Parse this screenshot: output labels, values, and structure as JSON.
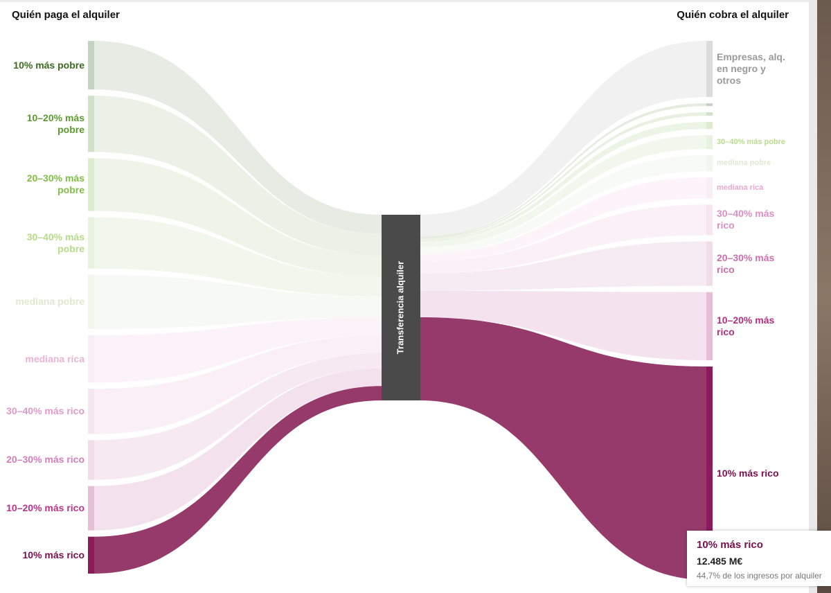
{
  "chart_data": {
    "type": "sankey",
    "title_left": "Quién paga el alquiler",
    "title_right": "Quién cobra el alquiler",
    "center": {
      "name": "Transferencia alquiler",
      "color": "#4a4a4a"
    },
    "sources": [
      {
        "name": "10% más pobre",
        "value": 2845,
        "color": "#c5d3c2",
        "link_color": "#e6ebe3",
        "label_color": "#3a6a1e"
      },
      {
        "name": "10–20% más pobre",
        "value": 3290,
        "color": "#d2e2c9",
        "link_color": "#ebf1e6",
        "label_color": "#5b9a2e"
      },
      {
        "name": "20–30% más pobre",
        "value": 3090,
        "color": "#dbecd0",
        "link_color": "#eef4e8",
        "label_color": "#7fbe45"
      },
      {
        "name": "30–40% más pobre",
        "value": 3010,
        "color": "#e8f3df",
        "link_color": "#f1f7ec",
        "label_color": "#b5dc88"
      },
      {
        "name": "mediana pobre",
        "value": 3170,
        "color": "#f3f6ef",
        "link_color": "#f7f9f4",
        "label_color": "#dfe8cf"
      },
      {
        "name": "mediana rica",
        "value": 2770,
        "color": "#f9eef6",
        "link_color": "#fbf3f8",
        "label_color": "#ebb3d8"
      },
      {
        "name": "30–40% más rico",
        "value": 2640,
        "color": "#f5e6f0",
        "link_color": "#f9eff5",
        "label_color": "#e099c9"
      },
      {
        "name": "20–30% más rico",
        "value": 2320,
        "color": "#f1dcea",
        "link_color": "#f6e9f1",
        "label_color": "#d47eb9"
      },
      {
        "name": "10–20% más rico",
        "value": 2600,
        "color": "#e6bfd6",
        "link_color": "#f3e2ee",
        "label_color": "#b8348a"
      },
      {
        "name": "10% más rico",
        "value": 2160,
        "color": "#8a1a5c",
        "link_color": "#963a6b",
        "label_color": "#7a0f4e"
      }
    ],
    "targets": [
      {
        "name": "Empresas, alq. en negro y otros",
        "value": 3290,
        "color": "#dcdcdc",
        "link_color": "#f1f1f1",
        "label_color": "#9a9a9a"
      },
      {
        "name": null,
        "value": 160,
        "color": "#c5d3c2",
        "link_color": "#e3ecdd",
        "label_color": "#3a6a1e"
      },
      {
        "name": null,
        "value": 200,
        "color": "#d2e2c9",
        "link_color": "#e8f0e2",
        "label_color": "#5b9a2e"
      },
      {
        "name": null,
        "value": 410,
        "color": "#dbecd0",
        "link_color": "#ecf4e6",
        "label_color": "#7fbe45"
      },
      {
        "name": "30–40% más pobre",
        "value": 810,
        "color": "#e8f3df",
        "link_color": "#f1f7ec",
        "label_color": "#b8dc8f"
      },
      {
        "name": "mediana pobre",
        "value": 940,
        "color": "#f3f6ef",
        "link_color": "#f8faf5",
        "label_color": "#e2e8d4"
      },
      {
        "name": "mediana rica",
        "value": 1220,
        "color": "#f9eef6",
        "link_color": "#fcf4f9",
        "label_color": "#e8a8d2"
      },
      {
        "name": "30–40% más rico",
        "value": 1790,
        "color": "#f5e6f0",
        "link_color": "#faf0f6",
        "label_color": "#dc8fc4"
      },
      {
        "name": "20–30% más rico",
        "value": 2600,
        "color": "#f1dcea",
        "link_color": "#f7ebf3",
        "label_color": "#cc6fae"
      },
      {
        "name": "10–20% más rico",
        "value": 3990,
        "color": "#e6bfd6",
        "link_color": "#f4e3ee",
        "label_color": "#b0307f"
      },
      {
        "name": "10% más rico",
        "value": 12485,
        "color": "#8a1a5c",
        "link_color": "#963a6b",
        "label_color": "#7a0f4e"
      }
    ],
    "tooltip": {
      "title": "10% más rico",
      "value": "12.485 M€",
      "note": "44,7% de los ingresos por alquiler"
    }
  }
}
